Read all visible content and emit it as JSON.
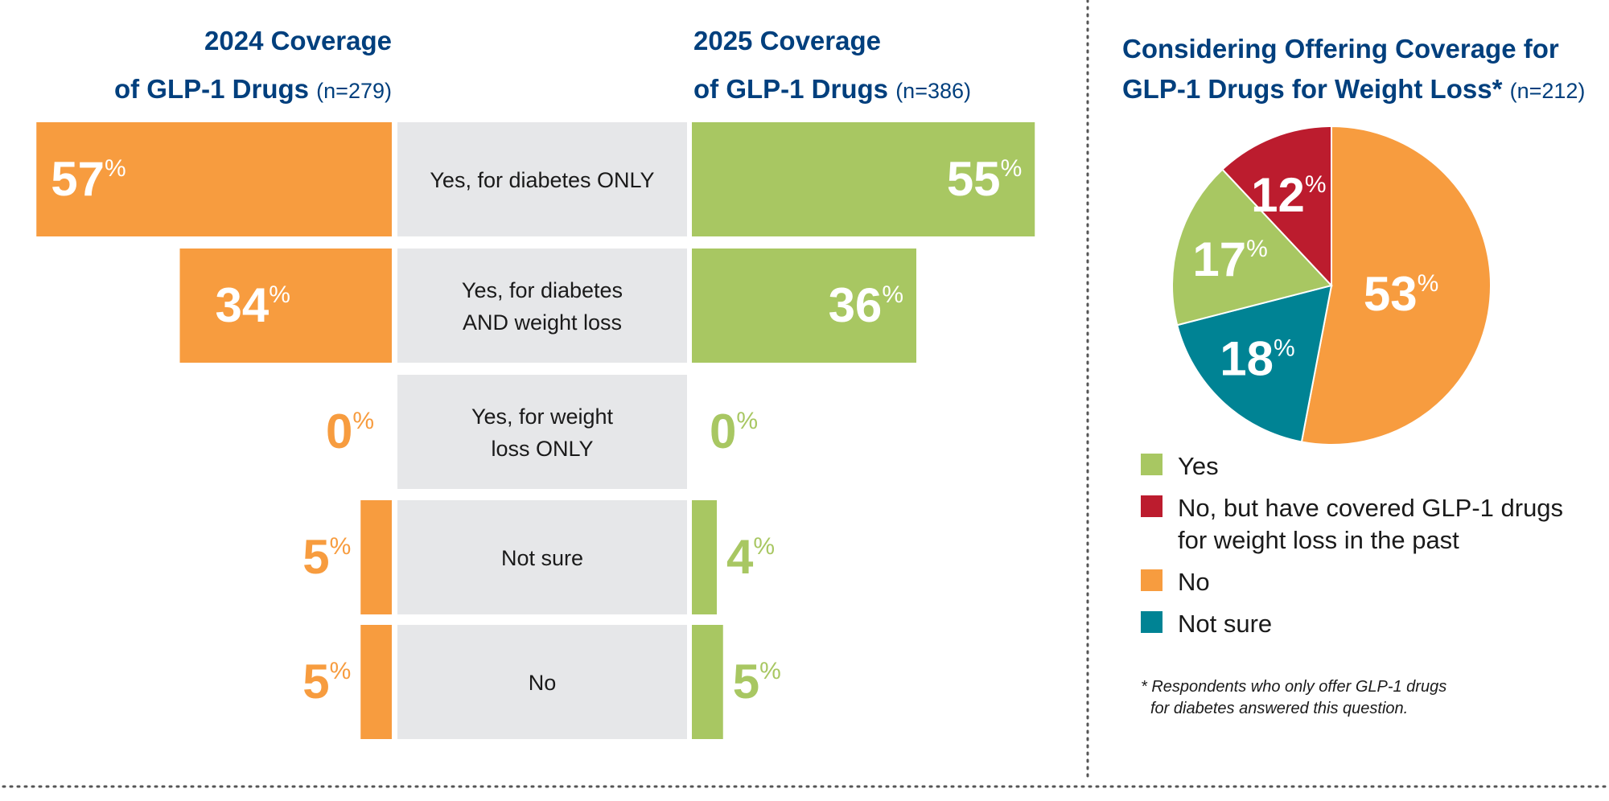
{
  "colors": {
    "orange": "#f79c3f",
    "green": "#a8c762",
    "red": "#bc1c2e",
    "teal": "#008394",
    "gray": "#e6e7e9",
    "title": "#003f7d"
  },
  "chart_data": [
    {
      "type": "bar",
      "orientation": "horizontal-butterfly",
      "categories": [
        "Yes, for diabetes ONLY",
        "Yes, for diabetes AND weight loss",
        "Yes, for weight loss ONLY",
        "Not sure",
        "No"
      ],
      "category_lines": [
        [
          "Yes, for diabetes ONLY"
        ],
        [
          "Yes, for diabetes",
          "AND weight loss"
        ],
        [
          "Yes, for weight",
          "loss ONLY"
        ],
        [
          "Not sure"
        ],
        [
          "No"
        ]
      ],
      "series": [
        {
          "name": "2024",
          "title_line1": "2024 Coverage",
          "title_line2": "of GLP-1 Drugs",
          "n": "(n=279)",
          "values": [
            57,
            34,
            0,
            5,
            5
          ],
          "color": "#f79c3f"
        },
        {
          "name": "2025",
          "title_line1": "2025 Coverage",
          "title_line2": "of GLP-1 Drugs",
          "n": "(n=386)",
          "values": [
            55,
            36,
            0,
            4,
            5
          ],
          "color": "#a8c762"
        }
      ],
      "unit": "%"
    },
    {
      "type": "pie",
      "title_line1": "Considering Offering Coverage for",
      "title_line2": "GLP-1 Drugs for Weight Loss*",
      "n": "(n=212)",
      "slices": [
        {
          "label": "No",
          "value": 53,
          "color": "#f79c3f"
        },
        {
          "label": "Not sure",
          "value": 18,
          "color": "#008394"
        },
        {
          "label": "Yes",
          "value": 17,
          "color": "#a8c762"
        },
        {
          "label": "No, but have covered GLP-1 drugs for weight loss in the past",
          "value": 12,
          "color": "#bc1c2e"
        }
      ],
      "legend": [
        {
          "label_lines": [
            "Yes"
          ],
          "color": "#a8c762"
        },
        {
          "label_lines": [
            "No, but have covered GLP-1 drugs",
            "for weight loss in the past"
          ],
          "color": "#bc1c2e"
        },
        {
          "label_lines": [
            "No"
          ],
          "color": "#f79c3f"
        },
        {
          "label_lines": [
            "Not sure"
          ],
          "color": "#008394"
        }
      ],
      "legend_position": "bottom",
      "footnote_lines": [
        "* Respondents who only offer GLP-1 drugs",
        "for diabetes answered this question."
      ],
      "unit": "%"
    }
  ]
}
